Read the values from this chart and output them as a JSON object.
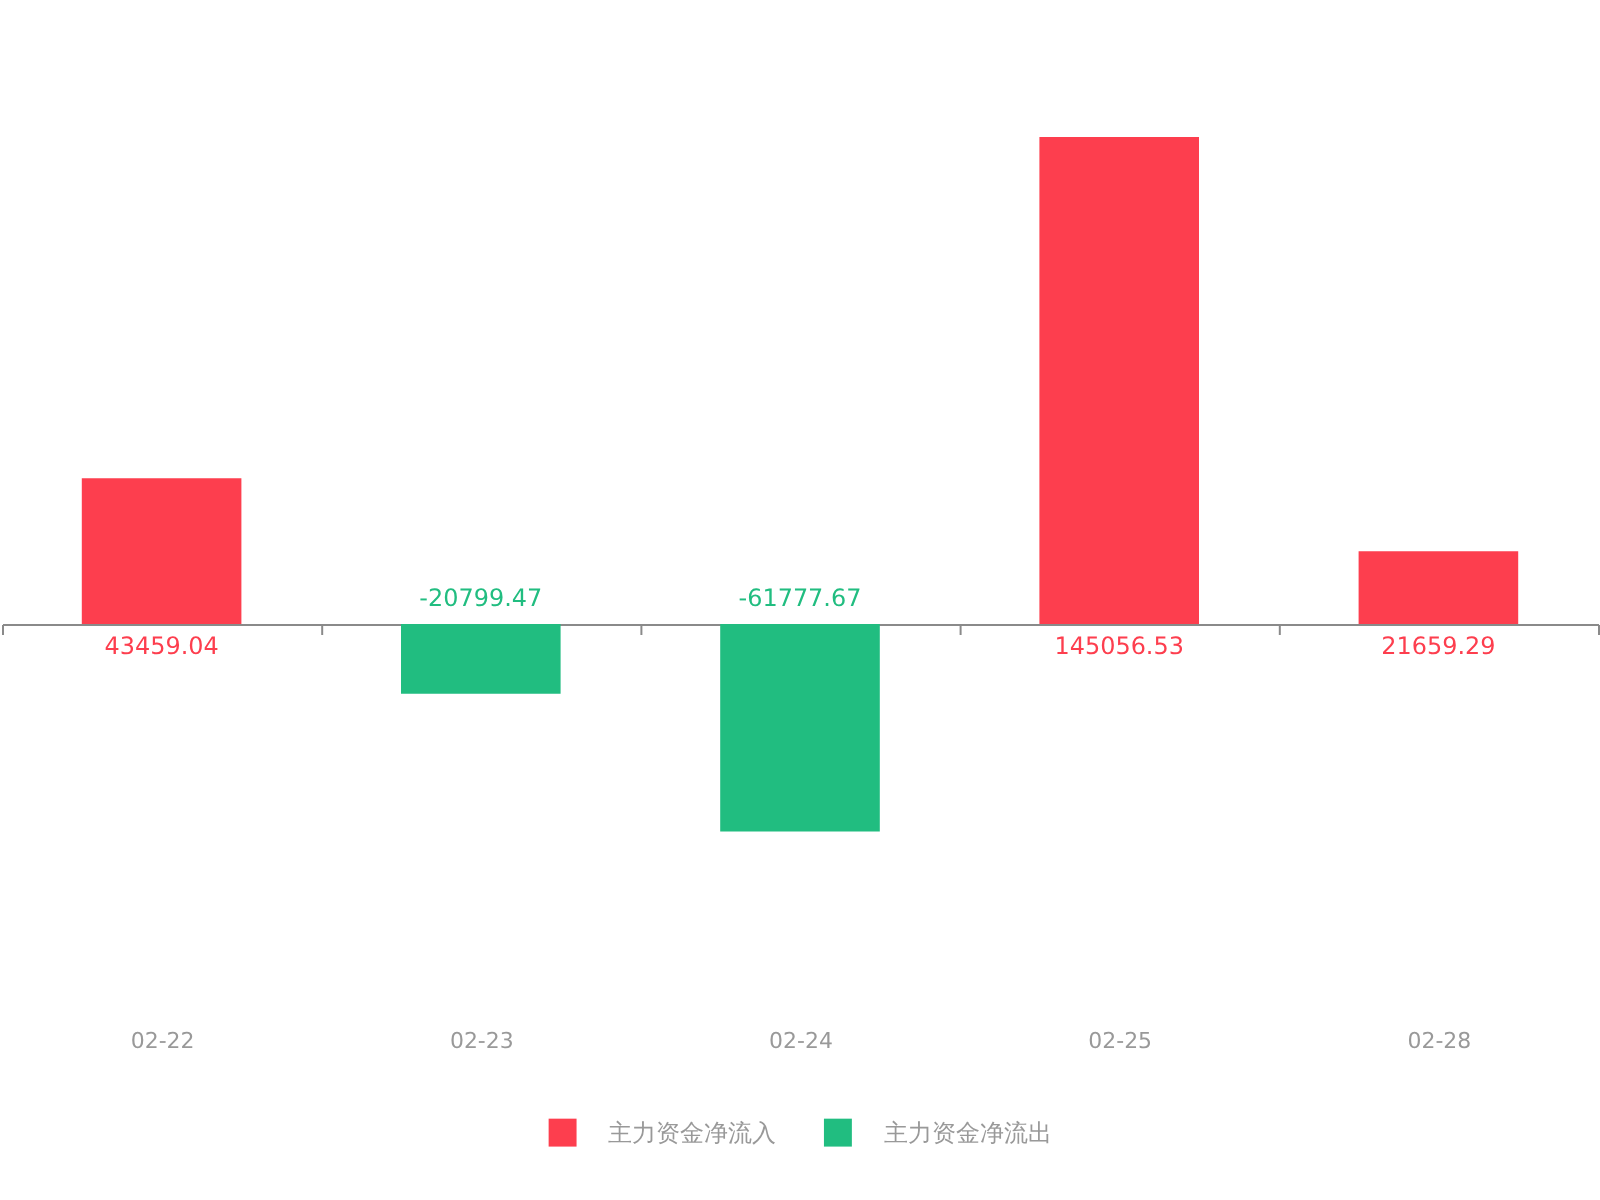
{
  "chart_data": {
    "type": "bar",
    "categories": [
      "02-22",
      "02-23",
      "02-24",
      "02-25",
      "02-28"
    ],
    "series": [
      {
        "name": "主力资金净流入",
        "color": "#fd3e4e",
        "values": [
          43459.04,
          null,
          null,
          145056.53,
          21659.29
        ]
      },
      {
        "name": "主力资金净流出",
        "color": "#21bd80",
        "values": [
          null,
          -20799.47,
          -61777.67,
          null,
          null
        ]
      }
    ],
    "stacked": true,
    "data_labels": true,
    "legend": "bottom",
    "tick_labels": "x"
  }
}
